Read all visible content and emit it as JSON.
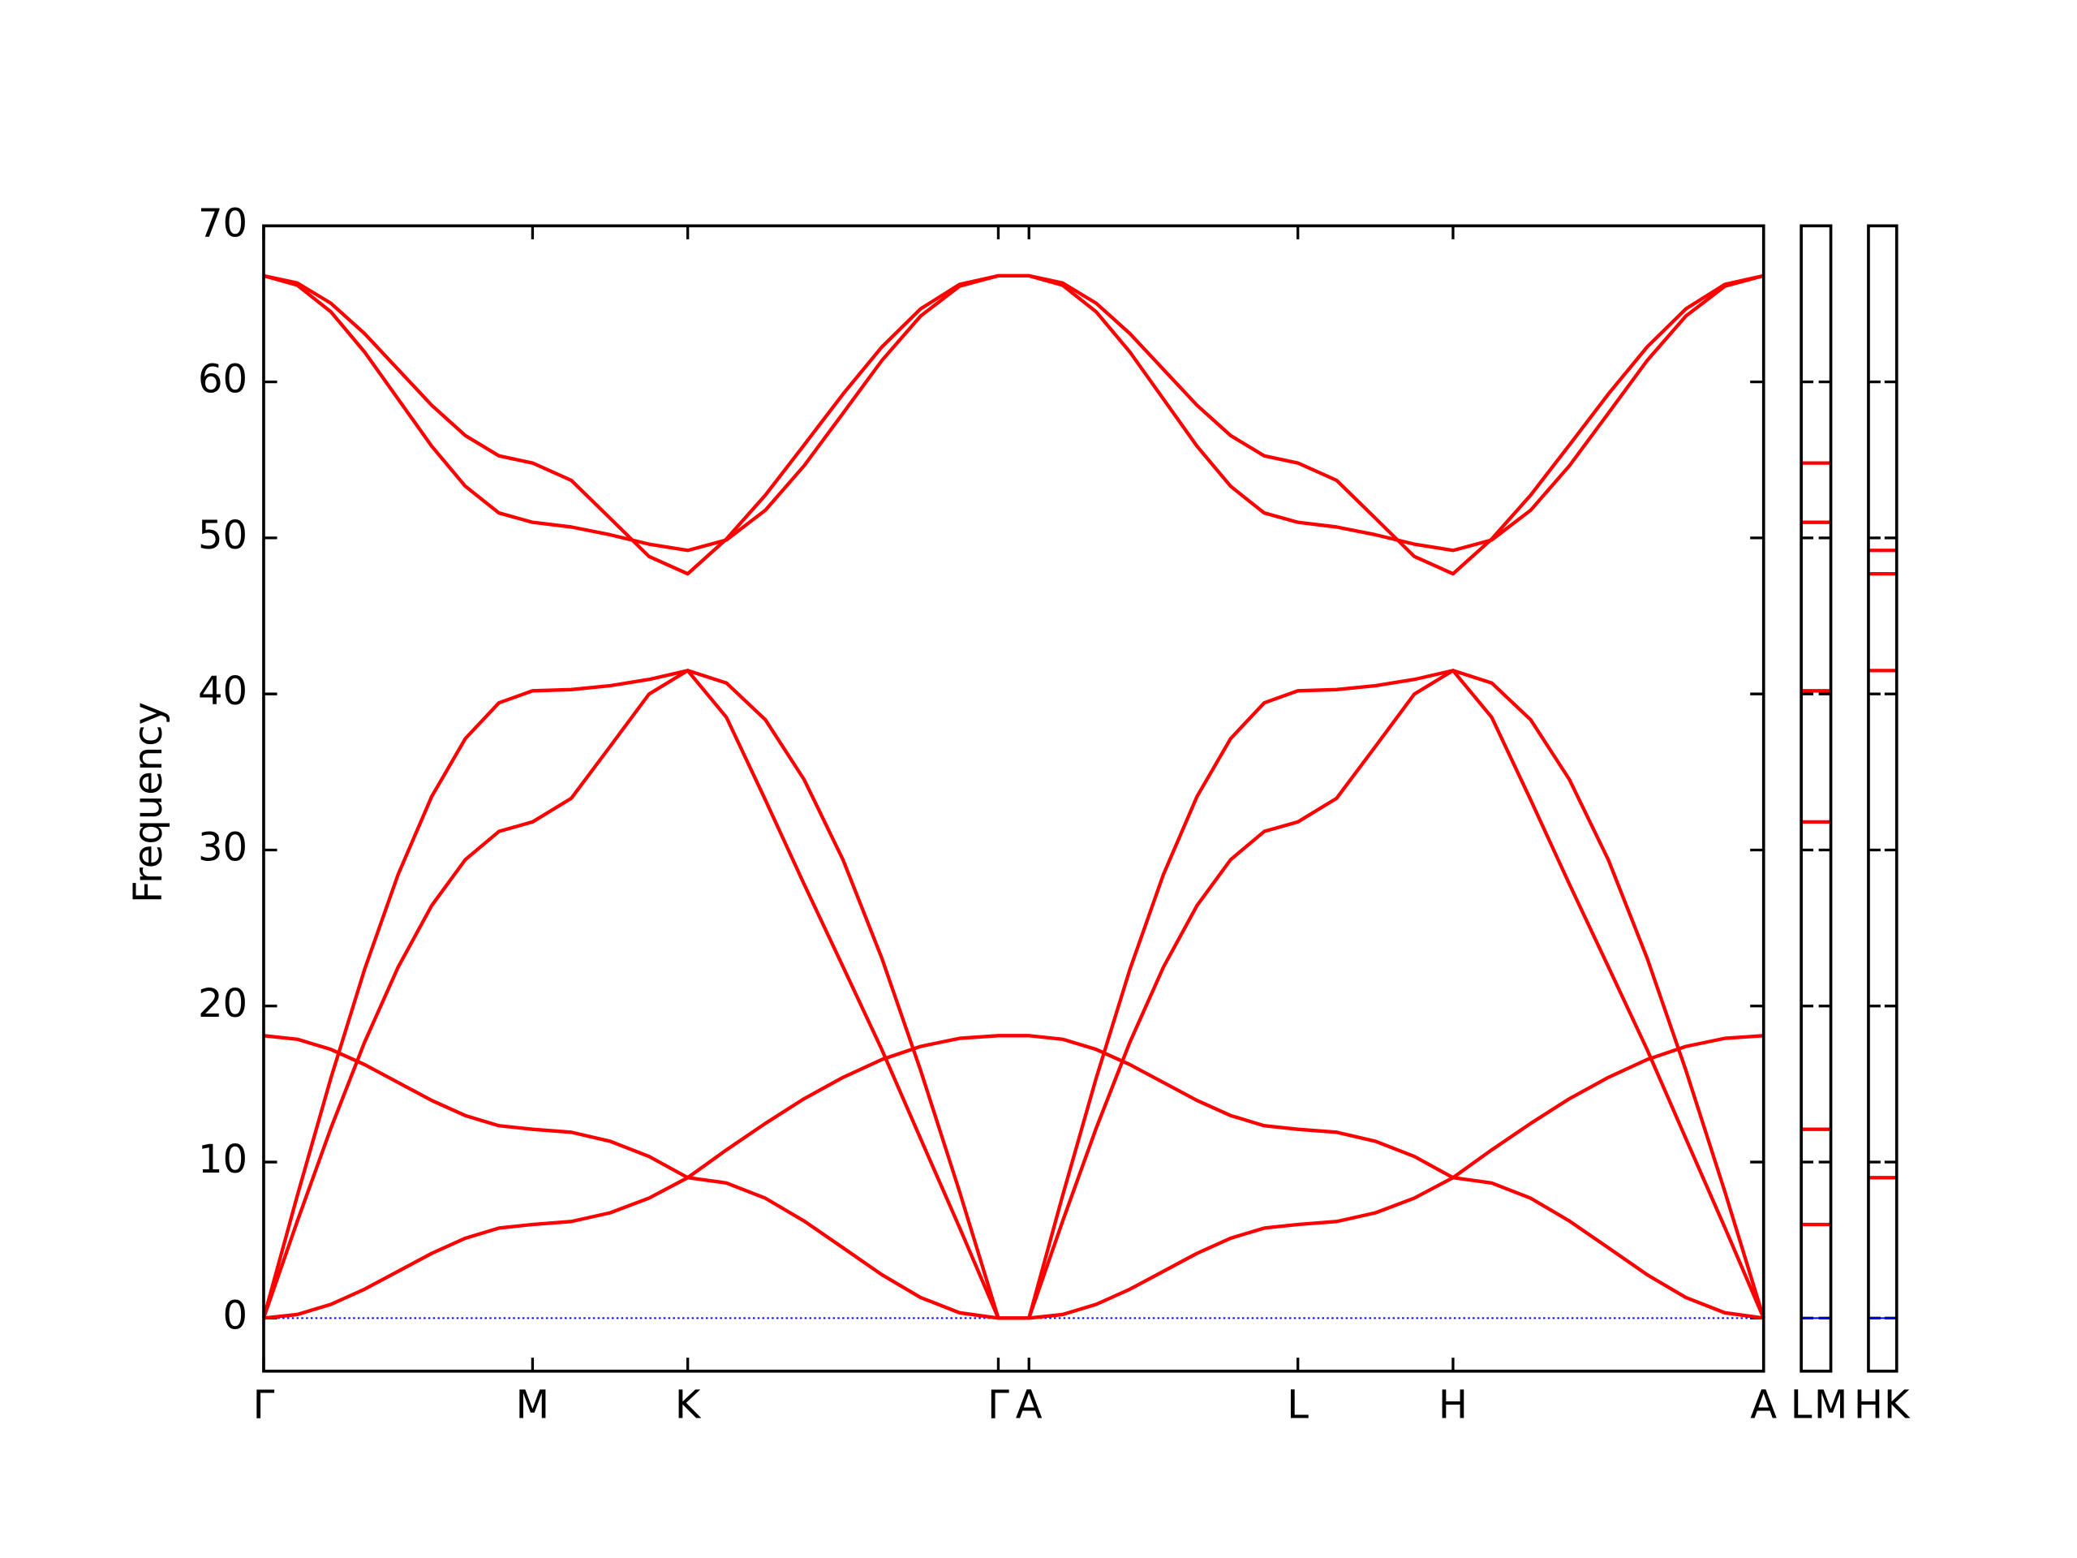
{
  "chart_data": {
    "type": "line",
    "ylabel": "Frequency",
    "x": [
      0,
      0.125,
      0.25,
      0.375,
      0.5,
      0.625,
      0.75,
      0.875,
      1,
      1.144,
      1.289,
      1.433,
      1.577,
      1.721,
      1.866,
      2.01,
      2.155,
      2.299,
      2.443,
      2.588,
      2.732,
      2.846,
      2.971,
      3.096,
      3.221,
      3.346,
      3.471,
      3.596,
      3.721,
      3.846,
      3.99,
      4.135,
      4.279,
      4.423,
      4.567,
      4.712,
      4.856,
      5.001,
      5.145,
      5.289,
      5.434,
      5.578
    ],
    "xlim": [
      0,
      5.578
    ],
    "xticks": [
      {
        "value": 0,
        "label": "Γ"
      },
      {
        "value": 1,
        "label": "M"
      },
      {
        "value": 1.577,
        "label": "K"
      },
      {
        "value": 2.732,
        "label": "Γ"
      },
      {
        "value": 2.846,
        "label": "A"
      },
      {
        "value": 3.846,
        "label": "L"
      },
      {
        "value": 4.423,
        "label": "H"
      },
      {
        "value": 5.578,
        "label": "A"
      }
    ],
    "ylim": [
      -3.4,
      70
    ],
    "yticks": [
      0,
      10,
      20,
      30,
      40,
      50,
      60,
      70
    ],
    "series": [
      {
        "color": "#ff0000",
        "values": [
          0,
          0.23,
          0.88,
          1.85,
          3.0,
          4.15,
          5.12,
          5.77,
          6.0,
          6.19,
          6.75,
          7.69,
          9,
          8.66,
          7.68,
          6.22,
          4.5,
          2.78,
          1.32,
          0.34,
          0,
          0,
          0.23,
          0.88,
          1.85,
          3.0,
          4.15,
          5.12,
          5.77,
          6.0,
          6.19,
          6.75,
          7.69,
          9,
          8.66,
          7.68,
          6.22,
          4.5,
          2.78,
          1.32,
          0.34,
          0
        ]
      },
      {
        "color": "#ff0000",
        "values": [
          18.1,
          17.87,
          17.22,
          16.25,
          15.1,
          13.95,
          12.98,
          12.33,
          12.1,
          11.91,
          11.33,
          10.36,
          9.0,
          10.78,
          12.48,
          14.06,
          15.43,
          16.57,
          17.41,
          17.93,
          18.1,
          18.1,
          17.87,
          17.22,
          16.25,
          15.1,
          13.95,
          12.98,
          12.33,
          12.1,
          11.91,
          11.33,
          10.36,
          9.0,
          10.78,
          12.48,
          14.06,
          15.43,
          16.57,
          17.41,
          17.93,
          18.1
        ]
      },
      {
        "color": "#ff0000",
        "values": [
          0,
          6.2,
          12.17,
          17.67,
          22.49,
          26.44,
          29.38,
          31.19,
          31.8,
          33.31,
          36.65,
          39.99,
          41.5,
          38.5,
          33.2,
          27.8,
          22.5,
          17.2,
          11.5,
          5.8,
          0,
          0,
          6.2,
          12.17,
          17.67,
          22.49,
          26.44,
          29.38,
          31.19,
          31.8,
          33.31,
          36.65,
          39.99,
          41.5,
          38.5,
          33.2,
          27.8,
          22.5,
          17.2,
          11.5,
          5.8,
          0
        ]
      },
      {
        "color": "#ff0000",
        "values": [
          0,
          7.84,
          15.38,
          22.33,
          28.43,
          33.43,
          37.14,
          39.43,
          40.2,
          40.28,
          40.53,
          40.93,
          41.5,
          40.7,
          38.34,
          34.51,
          29.35,
          23.06,
          15.88,
          8.1,
          0,
          0,
          7.84,
          15.38,
          22.33,
          28.43,
          33.43,
          37.14,
          39.43,
          40.2,
          40.28,
          40.53,
          40.93,
          41.5,
          40.7,
          38.34,
          34.51,
          29.35,
          23.06,
          15.88,
          8.1,
          0
        ]
      },
      {
        "color": "#ff0000",
        "values": [
          66.8,
          66.2,
          64.49,
          61.92,
          58.9,
          55.88,
          53.31,
          51.6,
          51.0,
          50.7,
          50.2,
          49.6,
          49.2,
          49.87,
          51.78,
          54.63,
          58.0,
          61.37,
          64.22,
          66.13,
          66.8,
          66.8,
          66.2,
          64.49,
          61.92,
          58.9,
          55.88,
          53.31,
          51.6,
          51.0,
          50.7,
          50.2,
          49.6,
          49.2,
          49.87,
          51.78,
          54.63,
          58.0,
          61.37,
          64.22,
          66.13,
          66.8
        ]
      },
      {
        "color": "#ff0000",
        "values": [
          66.8,
          66.34,
          65.04,
          63.1,
          60.8,
          58.5,
          56.56,
          55.26,
          54.8,
          53.69,
          51.25,
          48.81,
          47.7,
          49.93,
          52.75,
          55.96,
          59.23,
          62.24,
          64.68,
          66.25,
          66.8,
          66.8,
          66.34,
          65.04,
          63.1,
          60.8,
          58.5,
          56.56,
          55.26,
          54.8,
          53.69,
          51.25,
          48.81,
          47.7,
          49.93,
          52.75,
          55.96,
          59.23,
          62.24,
          64.68,
          66.25,
          66.8
        ]
      }
    ],
    "zero_line": {
      "value": 0,
      "color": "#0000ff"
    },
    "panels": [
      {
        "categories": [
          "L",
          "M"
        ],
        "color": "#ff0000",
        "values": [
          54.8,
          51.0,
          40.2,
          31.8,
          12.1,
          6.0
        ]
      },
      {
        "categories": [
          "H",
          "K"
        ],
        "color": "#ff0000",
        "values": [
          49.2,
          47.7,
          41.5,
          9.0
        ]
      }
    ]
  }
}
